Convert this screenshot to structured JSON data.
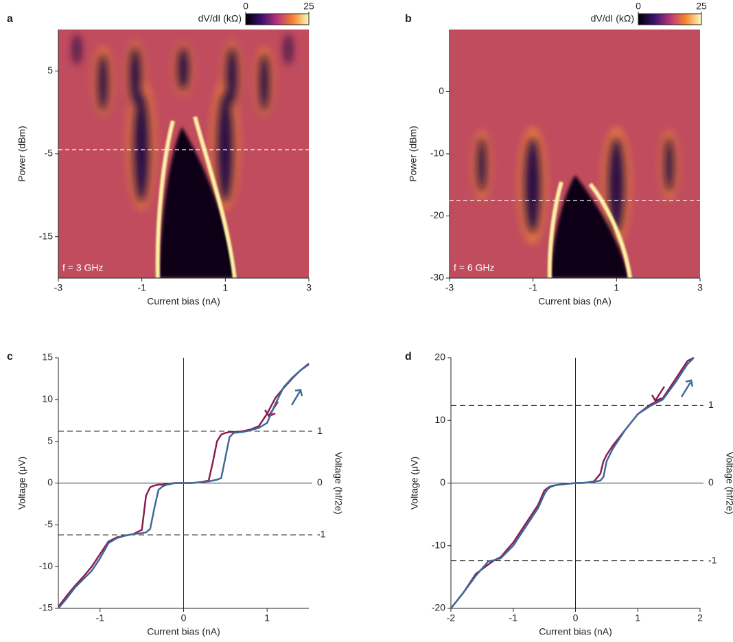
{
  "chart_data": [
    {
      "type": "heatmap",
      "panel_label": "a",
      "colorbar_label": "dV/dI (kΩ)",
      "clim": [
        0,
        25
      ],
      "cticks": [
        0,
        25
      ],
      "x_label": "Current bias (nA)",
      "y_label": "Power (dBm)",
      "annotation": "f = 3 GHz",
      "xlim": [
        -3,
        3
      ],
      "xticks": [
        -3,
        -1,
        1,
        3
      ],
      "ylim": [
        -20,
        10
      ],
      "yticks": [
        5,
        -5,
        -15
      ],
      "dashed_line": -4.5
    },
    {
      "type": "heatmap",
      "panel_label": "b",
      "colorbar_label": "dV/dI (kΩ)",
      "clim": [
        0,
        25
      ],
      "cticks": [
        0,
        25
      ],
      "x_label": "Current bias (nA)",
      "y_label": "Power (dBm)",
      "annotation": "f = 6 GHz",
      "xlim": [
        -3,
        3
      ],
      "xticks": [
        -3,
        -1,
        1,
        3
      ],
      "ylim": [
        -30,
        10
      ],
      "yticks": [
        0,
        -10,
        -20,
        -30
      ],
      "dashed_line": -17.5
    },
    {
      "type": "line",
      "panel_label": "c",
      "x_label": "Current bias (nA)",
      "y_label": "Voltage (μV)",
      "y2_label": "Voltage (hf/2e)",
      "xlim": [
        -1.5,
        1.5
      ],
      "xticks": [
        -1,
        0,
        1
      ],
      "ylim": [
        -15,
        15
      ],
      "yticks": [
        -15,
        -10,
        -5,
        0,
        5,
        10,
        15
      ],
      "y2lim": [
        -2.419,
        2.419
      ],
      "y2ticks": [
        -1,
        0,
        1
      ],
      "hlines": [
        -1,
        1
      ],
      "x": [
        -1.5,
        -1.4,
        -1.3,
        -1.2,
        -1.1,
        -1.0,
        -0.9,
        -0.8,
        -0.7,
        -0.6,
        -0.5,
        -0.45,
        -0.4,
        -0.35,
        -0.3,
        -0.25,
        -0.2,
        -0.1,
        0,
        0.1,
        0.2,
        0.3,
        0.35,
        0.4,
        0.45,
        0.5,
        0.55,
        0.6,
        0.7,
        0.8,
        0.9,
        1.0,
        1.1,
        1.2,
        1.3,
        1.4,
        1.5
      ],
      "series": [
        {
          "color": "#8a1d52",
          "values": [
            -14.8,
            -13.5,
            -12.3,
            -11.2,
            -10,
            -8.5,
            -7,
            -6.5,
            -6.3,
            -6.1,
            -5.6,
            -1.5,
            -0.5,
            -0.3,
            -0.2,
            -0.2,
            -0.1,
            0,
            0,
            0,
            0.1,
            0.3,
            2.5,
            5,
            5.8,
            6,
            6.1,
            6.1,
            6.2,
            6.4,
            6.8,
            8.3,
            10.2,
            11.4,
            12.5,
            13.5,
            14.3
          ]
        },
        {
          "color": "#3d6a96",
          "values": [
            -15,
            -13.8,
            -12.5,
            -11.5,
            -10.5,
            -9,
            -7.2,
            -6.6,
            -6.3,
            -6.1,
            -6,
            -5.9,
            -5.5,
            -3,
            -0.8,
            -0.4,
            -0.2,
            0,
            0,
            0,
            0.1,
            0.2,
            0.3,
            0.4,
            0.6,
            3,
            5.5,
            6,
            6.1,
            6.3,
            6.6,
            7.2,
            9.5,
            11.5,
            12.6,
            13.5,
            14.2
          ]
        }
      ]
    },
    {
      "type": "line",
      "panel_label": "d",
      "x_label": "Current bias (nA)",
      "y_label": "Voltage (μV)",
      "y2_label": "Voltage (hf/2e)",
      "xlim": [
        -2,
        2
      ],
      "xticks": [
        -2,
        -1,
        0,
        1,
        2
      ],
      "ylim": [
        -20,
        20
      ],
      "yticks": [
        -20,
        -10,
        0,
        10,
        20
      ],
      "y2lim": [
        -1.613,
        1.613
      ],
      "y2ticks": [
        -1,
        0,
        1
      ],
      "hlines": [
        -1,
        1
      ],
      "x": [
        -2,
        -1.8,
        -1.6,
        -1.4,
        -1.3,
        -1.2,
        -1.0,
        -0.8,
        -0.6,
        -0.5,
        -0.45,
        -0.4,
        -0.3,
        -0.2,
        -0.1,
        0,
        0.1,
        0.2,
        0.3,
        0.4,
        0.45,
        0.5,
        0.6,
        0.8,
        1.0,
        1.2,
        1.4,
        1.6,
        1.8,
        1.9
      ],
      "series": [
        {
          "color": "#8a1d52",
          "values": [
            -20,
            -17.5,
            -14.5,
            -13,
            -12.3,
            -11.8,
            -9.5,
            -6.5,
            -3.5,
            -1.2,
            -0.8,
            -0.5,
            -0.3,
            -0.2,
            -0.1,
            0,
            0,
            0.1,
            0.3,
            1.5,
            3.5,
            4.5,
            6,
            8.5,
            11,
            12.5,
            13.5,
            16.5,
            19.5,
            20
          ]
        },
        {
          "color": "#3d6a96",
          "values": [
            -20,
            -17.5,
            -14.8,
            -12.5,
            -12.3,
            -12,
            -10,
            -7,
            -4,
            -1.8,
            -1,
            -0.6,
            -0.3,
            -0.2,
            -0.1,
            0,
            0,
            0.1,
            0.2,
            0.4,
            1,
            3.5,
            5.5,
            8.5,
            11,
            12.3,
            13.3,
            16,
            19,
            20
          ]
        }
      ]
    }
  ]
}
